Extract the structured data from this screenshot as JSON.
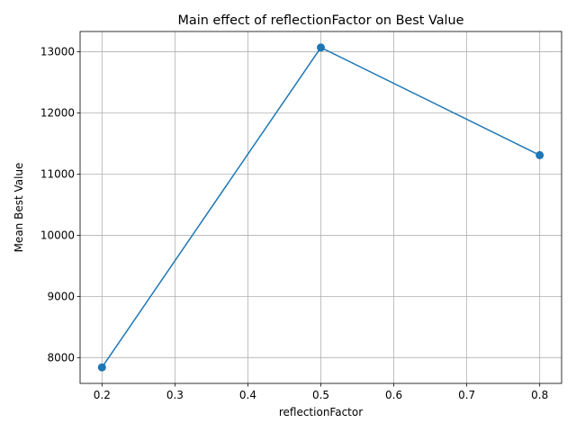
{
  "chart_data": {
    "type": "line",
    "title": "Main effect of reflectionFactor on Best Value",
    "xlabel": "reflectionFactor",
    "ylabel": "Mean Best Value",
    "x": [
      0.2,
      0.5,
      0.8
    ],
    "series": [
      {
        "values": [
          7840,
          13070,
          11310
        ],
        "color": "#1f77b4",
        "marker": "circle"
      }
    ],
    "xlim": [
      0.17,
      0.83
    ],
    "ylim": [
      7578,
      13332
    ],
    "xticks": [
      0.2,
      0.3,
      0.4,
      0.5,
      0.6,
      0.7,
      0.8
    ],
    "xtick_labels": [
      "0.2",
      "0.3",
      "0.4",
      "0.5",
      "0.6",
      "0.7",
      "0.8"
    ],
    "yticks": [
      8000,
      9000,
      10000,
      11000,
      12000,
      13000
    ],
    "ytick_labels": [
      "8000",
      "9000",
      "10000",
      "11000",
      "12000",
      "13000"
    ],
    "grid": true,
    "legend": "none"
  }
}
